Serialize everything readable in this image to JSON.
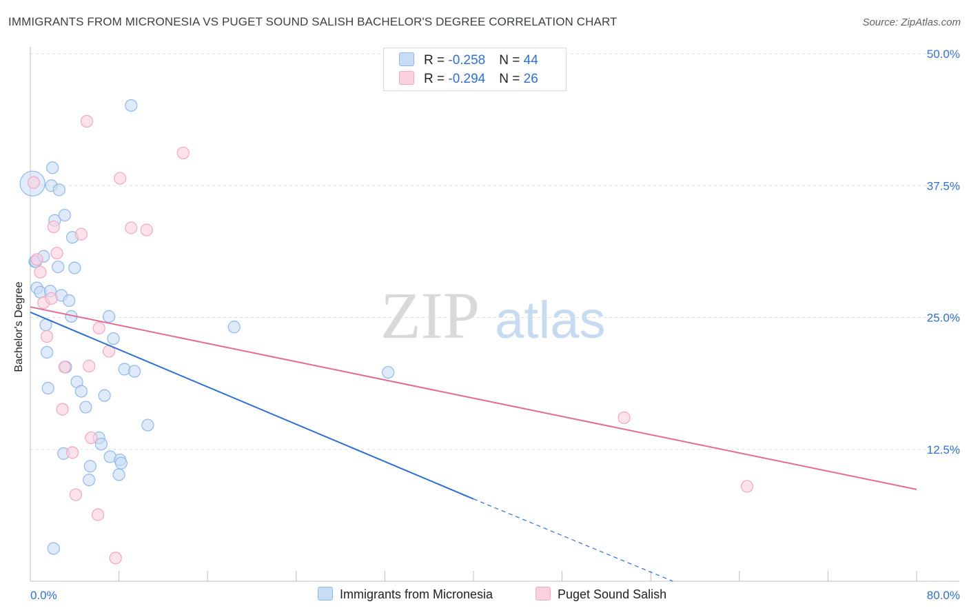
{
  "chart_data": {
    "type": "scatter",
    "title": "IMMIGRANTS FROM MICRONESIA VS PUGET SOUND SALISH BACHELOR'S DEGREE CORRELATION CHART",
    "source": "Source: ZipAtlas.com",
    "xlabel": "",
    "ylabel": "Bachelor's Degree",
    "xlim": [
      0,
      80
    ],
    "ylim": [
      0,
      50
    ],
    "x_tick_labels": {
      "left": "0.0%",
      "right": "80.0%"
    },
    "y_ticks": [
      {
        "value": 12.5,
        "label": "12.5%"
      },
      {
        "value": 25,
        "label": "25.0%"
      },
      {
        "value": 37.5,
        "label": "37.5%"
      },
      {
        "value": 50,
        "label": "50.0%"
      }
    ],
    "watermark": {
      "zip": "ZIP",
      "atlas": "atlas"
    },
    "legend_stats": [
      {
        "r_label": "R = ",
        "r_value": "-0.258",
        "n_label": "N = ",
        "n_value": "44"
      },
      {
        "r_label": "R = ",
        "r_value": "-0.294",
        "n_label": "N = ",
        "n_value": "26"
      }
    ],
    "series": [
      {
        "name": "Immigrants from Micronesia",
        "color": "#8fb8ea",
        "fill": "#c9dcf5",
        "line_color": "#2b6fd0",
        "trend": {
          "x0": 0,
          "y0": 25.5,
          "x1": 40,
          "y1": 7.8,
          "dash_to_x": 58,
          "dash_to_y": 0
        },
        "points": [
          [
            0.2,
            37.7
          ],
          [
            0.4,
            30.3
          ],
          [
            0.5,
            30.3
          ],
          [
            0.6,
            27.8
          ],
          [
            0.9,
            27.4
          ],
          [
            1.2,
            30.8
          ],
          [
            1.4,
            24.3
          ],
          [
            1.5,
            21.7
          ],
          [
            1.6,
            18.3
          ],
          [
            1.8,
            27.5
          ],
          [
            1.9,
            37.5
          ],
          [
            2.0,
            39.2
          ],
          [
            2.1,
            3.1
          ],
          [
            2.2,
            34.2
          ],
          [
            2.5,
            29.8
          ],
          [
            2.6,
            37.1
          ],
          [
            2.8,
            27.1
          ],
          [
            3.0,
            12.1
          ],
          [
            3.1,
            34.7
          ],
          [
            3.2,
            20.3
          ],
          [
            3.5,
            26.6
          ],
          [
            3.7,
            25.1
          ],
          [
            3.8,
            32.6
          ],
          [
            4.0,
            29.7
          ],
          [
            4.2,
            18.9
          ],
          [
            4.6,
            18.0
          ],
          [
            5.0,
            16.5
          ],
          [
            5.3,
            9.6
          ],
          [
            5.4,
            10.9
          ],
          [
            6.2,
            13.6
          ],
          [
            6.4,
            13.0
          ],
          [
            6.7,
            17.6
          ],
          [
            7.1,
            25.1
          ],
          [
            7.2,
            11.8
          ],
          [
            7.5,
            23.0
          ],
          [
            8.0,
            10.1
          ],
          [
            8.1,
            11.5
          ],
          [
            8.2,
            11.2
          ],
          [
            8.5,
            20.1
          ],
          [
            9.1,
            45.1
          ],
          [
            9.4,
            19.9
          ],
          [
            10.6,
            14.8
          ],
          [
            18.4,
            24.1
          ],
          [
            32.3,
            19.8
          ]
        ]
      },
      {
        "name": "Puget Sound Salish",
        "color": "#f3a6bf",
        "fill": "#fad0de",
        "line_color": "#e36a94",
        "trend": {
          "x0": 0,
          "y0": 26.0,
          "x1": 80,
          "y1": 8.7
        },
        "points": [
          [
            0.3,
            37.8
          ],
          [
            0.6,
            30.5
          ],
          [
            0.9,
            29.3
          ],
          [
            1.2,
            26.4
          ],
          [
            1.5,
            23.2
          ],
          [
            1.9,
            26.8
          ],
          [
            2.1,
            33.6
          ],
          [
            2.4,
            31.1
          ],
          [
            2.9,
            16.3
          ],
          [
            3.1,
            20.3
          ],
          [
            3.8,
            12.2
          ],
          [
            4.1,
            8.2
          ],
          [
            4.6,
            32.9
          ],
          [
            5.1,
            43.6
          ],
          [
            5.3,
            20.4
          ],
          [
            5.5,
            13.6
          ],
          [
            6.1,
            6.3
          ],
          [
            6.2,
            24.0
          ],
          [
            7.1,
            21.8
          ],
          [
            7.7,
            2.2
          ],
          [
            8.1,
            38.2
          ],
          [
            9.1,
            33.5
          ],
          [
            10.5,
            33.3
          ],
          [
            13.8,
            40.6
          ],
          [
            53.6,
            15.5
          ],
          [
            64.7,
            9.0
          ]
        ]
      }
    ]
  }
}
